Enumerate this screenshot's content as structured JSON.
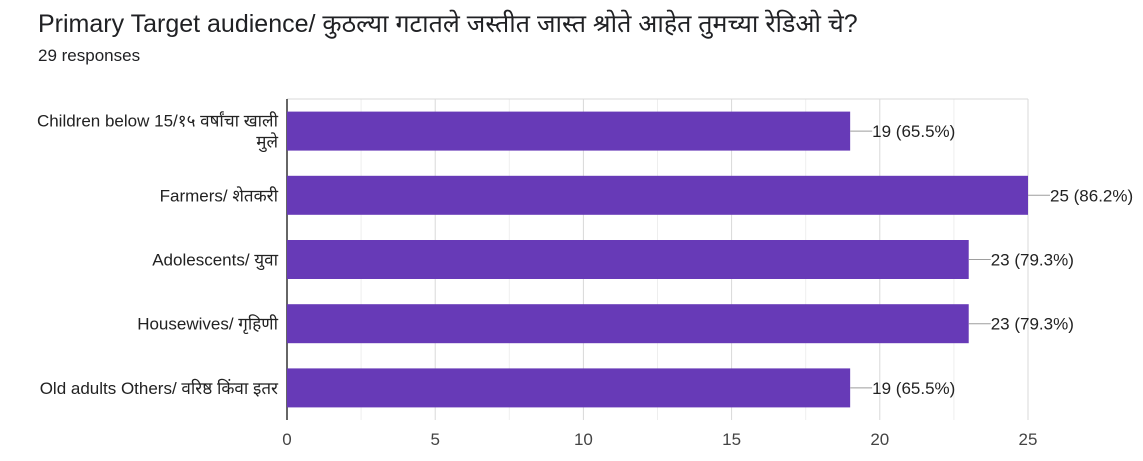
{
  "title": "Primary Target audience/ कुठल्या गटातले जस्तीत जास्त श्रोते आहेत तुमच्या रेडिओ चे?",
  "subtitle": "29 responses",
  "chart_data": {
    "type": "bar",
    "orientation": "horizontal",
    "categories": [
      [
        "Children below 15/१५ वर्षांचा खाली",
        "मुले"
      ],
      [
        "Farmers/ शेतकरी"
      ],
      [
        "Adolescents/ युवा"
      ],
      [
        "Housewives/ गृहिणी"
      ],
      [
        "Old adults Others/ वरिष्ठ किंवा इतर"
      ]
    ],
    "values": [
      19,
      25,
      23,
      23,
      19
    ],
    "value_labels": [
      "19 (65.5%)",
      "25 (86.2%)",
      "23 (79.3%)",
      "23 (79.3%)",
      "19 (65.5%)"
    ],
    "xlim": [
      0,
      25
    ],
    "xticks": [
      0,
      5,
      10,
      15,
      20,
      25
    ],
    "bar_color": "#673ab7",
    "grid": true
  }
}
